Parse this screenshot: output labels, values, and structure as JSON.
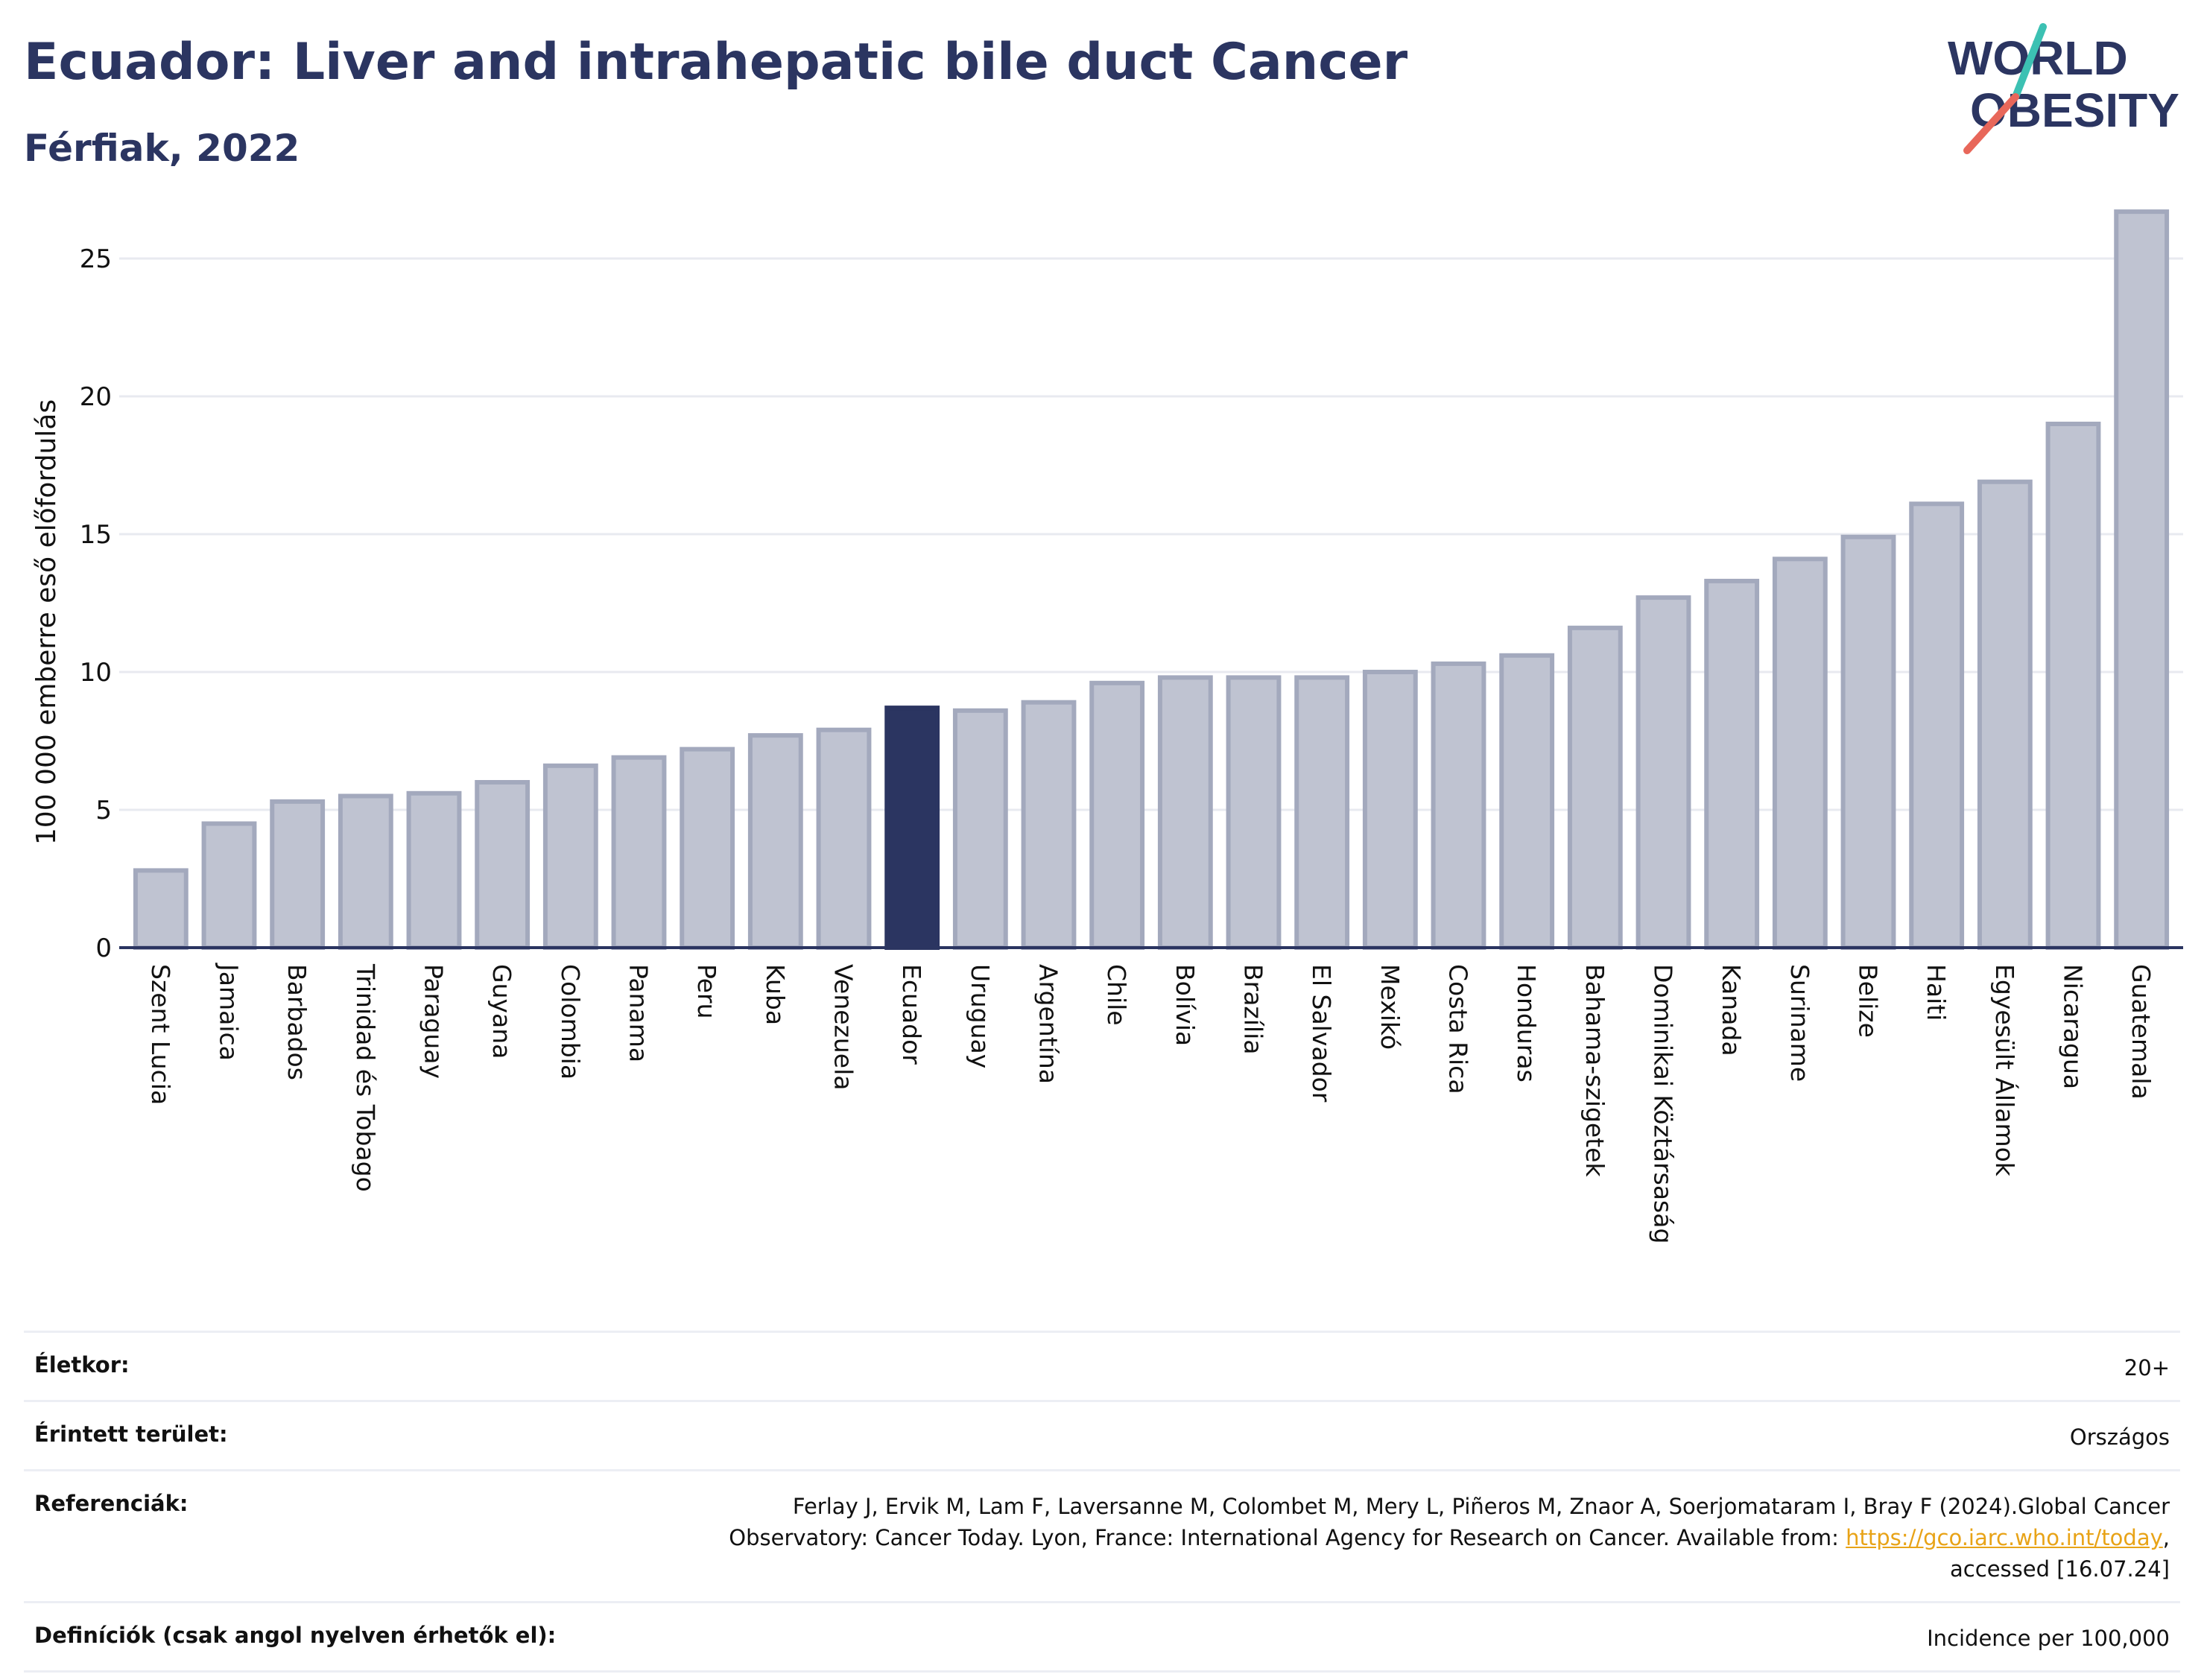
{
  "header": {
    "title": "Ecuador: Liver and intrahepatic bile duct Cancer",
    "subtitle": "Férfiak, 2022"
  },
  "logo": {
    "line1": "WORLD",
    "line2": "OBESITY",
    "colors": {
      "text": "#2b3561",
      "teal": "#3cc1b3",
      "coral": "#e8675a"
    }
  },
  "chart_data": {
    "type": "bar",
    "categories": [
      "Szent Lucia",
      "Jamaica",
      "Barbados",
      "Trinidad és Tobago",
      "Paraguay",
      "Guyana",
      "Colombia",
      "Panama",
      "Peru",
      "Kuba",
      "Venezuela",
      "Ecuador",
      "Uruguay",
      "Argentína",
      "Chile",
      "Bolívia",
      "Brazília",
      "El Salvador",
      "Mexikó",
      "Costa Rica",
      "Honduras",
      "Bahama-szigetek",
      "Dominikai Köztársaság",
      "Kanada",
      "Suriname",
      "Belize",
      "Haiti",
      "Egyesült Államok",
      "Nicaragua",
      "Guatemala"
    ],
    "values": [
      2.8,
      4.5,
      5.3,
      5.5,
      5.6,
      6.0,
      6.6,
      6.9,
      7.2,
      7.7,
      7.9,
      8.7,
      8.6,
      8.9,
      9.6,
      9.8,
      9.8,
      9.8,
      10.0,
      10.3,
      10.6,
      11.6,
      12.7,
      13.3,
      14.1,
      14.9,
      16.1,
      16.9,
      19.0,
      26.7
    ],
    "highlight": "Ecuador",
    "title": "Ecuador: Liver and intrahepatic bile duct Cancer",
    "subtitle": "Férfiak, 2022",
    "xlabel": "",
    "ylabel": "100 000 emberre eső előfordulás",
    "ylim": [
      0,
      27
    ],
    "yticks": [
      0,
      5,
      10,
      15,
      20,
      25
    ],
    "grid": true,
    "colors": {
      "bar": "#bfc3d1",
      "bar_edge": "#a3a9bd",
      "highlight": "#2b3561",
      "grid": "#e8eaf0",
      "axis": "#2b3561"
    }
  },
  "meta": [
    {
      "label": "Életkor:",
      "value": "20+"
    },
    {
      "label": "Érintett terület:",
      "value": "Országos"
    },
    {
      "label": "Referenciák:",
      "value_line1": "Ferlay J, Ervik M, Lam F, Laversanne M, Colombet M, Mery L, Piñeros M, Znaor A, Soerjomataram I, Bray F (2024).Global Cancer",
      "value_line2_pre": "Observatory: Cancer Today. Lyon, France: International Agency for Research on Cancer. Available from: ",
      "link": "https://gco.iarc.who.int/today",
      "value_line2_post": ",",
      "value_line3": "accessed [16.07.24]"
    },
    {
      "label": "Definíciók (csak angol nyelven érhetők el):",
      "value": "Incidence per 100,000"
    }
  ]
}
